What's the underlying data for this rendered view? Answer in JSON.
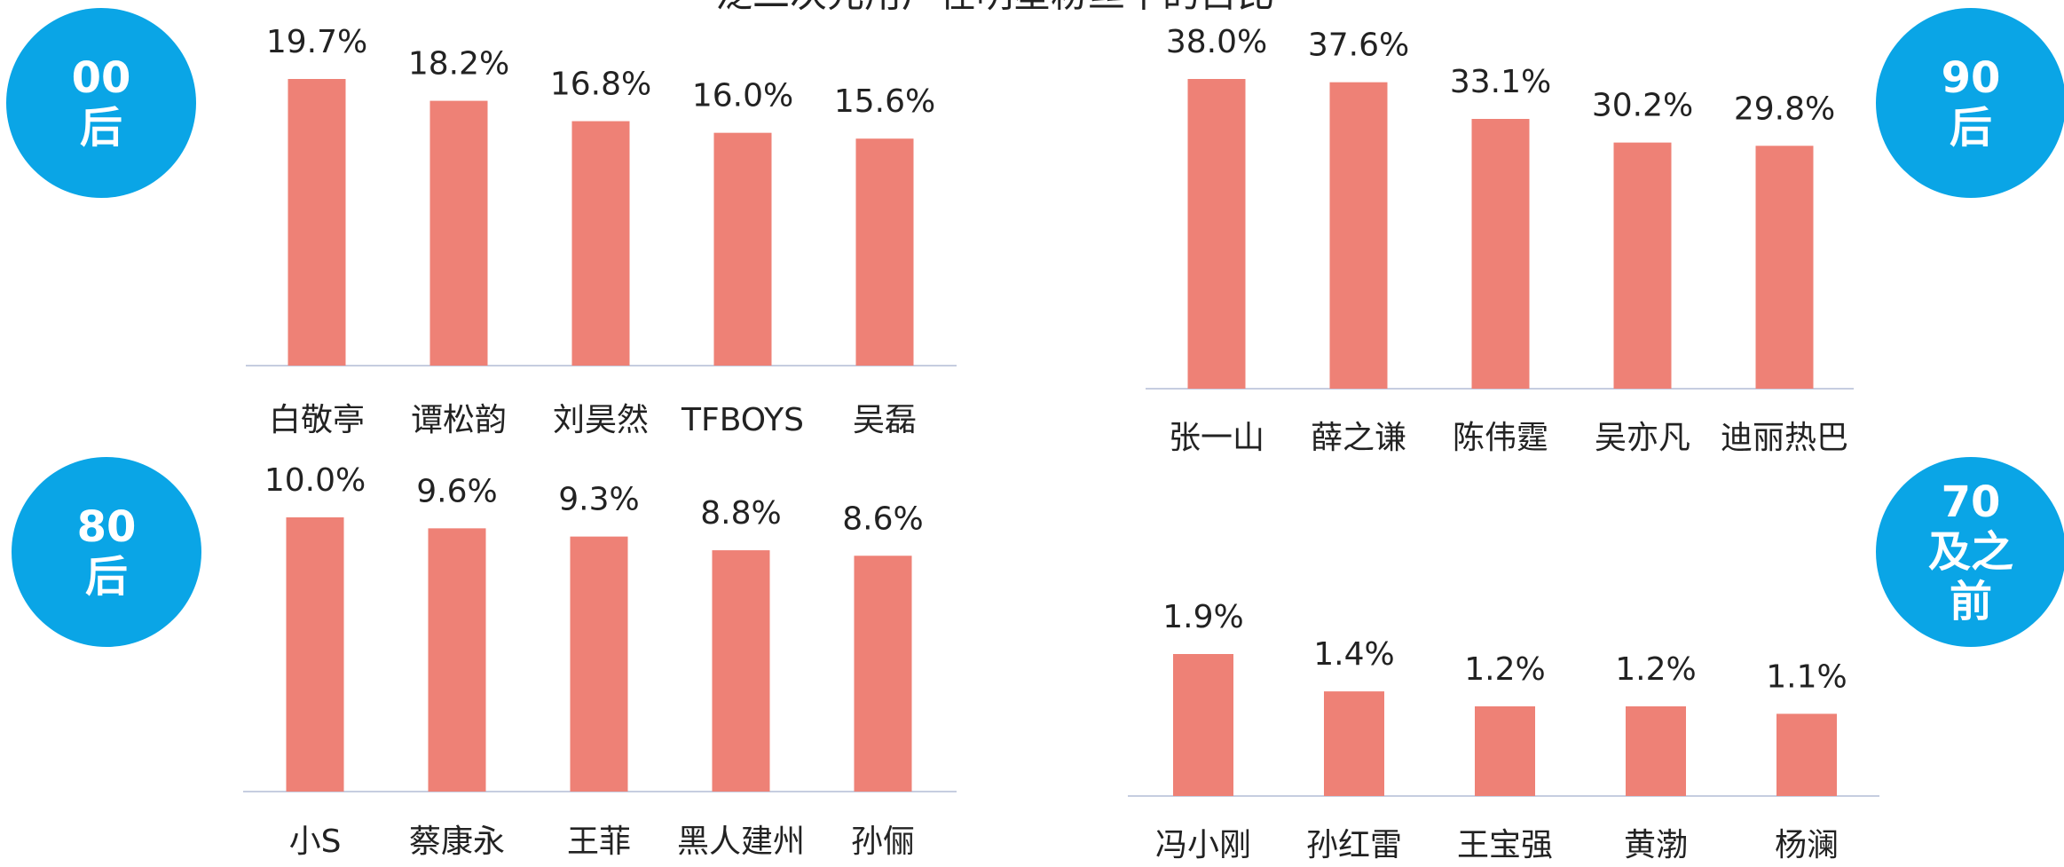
{
  "title": "泛二次元用户在明星粉丝中的占比",
  "chart_data": [
    {
      "type": "bar",
      "title": "00后",
      "categories": [
        "白敬亭",
        "谭松韵",
        "刘昊然",
        "TFBOYS",
        "吴磊"
      ],
      "values": [
        19.7,
        18.2,
        16.8,
        16.0,
        15.6
      ],
      "value_labels": [
        "19.7%",
        "18.2%",
        "16.8%",
        "16.0%",
        "15.6%"
      ],
      "color": "#ee8176"
    },
    {
      "type": "bar",
      "title": "90后",
      "categories": [
        "张一山",
        "薛之谦",
        "陈伟霆",
        "吴亦凡",
        "迪丽热巴"
      ],
      "values": [
        38.0,
        37.6,
        33.1,
        30.2,
        29.8
      ],
      "value_labels": [
        "38.0%",
        "37.6%",
        "33.1%",
        "30.2%",
        "29.8%"
      ],
      "color": "#ee8176"
    },
    {
      "type": "bar",
      "title": "80后",
      "categories": [
        "小S",
        "蔡康永",
        "王菲",
        "黑人建州",
        "孙俪"
      ],
      "values": [
        10.0,
        9.6,
        9.3,
        8.8,
        8.6
      ],
      "value_labels": [
        "10.0%",
        "9.6%",
        "9.3%",
        "8.8%",
        "8.6%"
      ],
      "color": "#ee8176"
    },
    {
      "type": "bar",
      "title": "70及之前",
      "categories": [
        "冯小刚",
        "孙红雷",
        "王宝强",
        "黄渤",
        "杨澜"
      ],
      "values": [
        1.9,
        1.4,
        1.2,
        1.2,
        1.1
      ],
      "value_labels": [
        "1.9%",
        "1.4%",
        "1.2%",
        "1.2%",
        "1.1%"
      ],
      "color": "#ee8176"
    }
  ]
}
